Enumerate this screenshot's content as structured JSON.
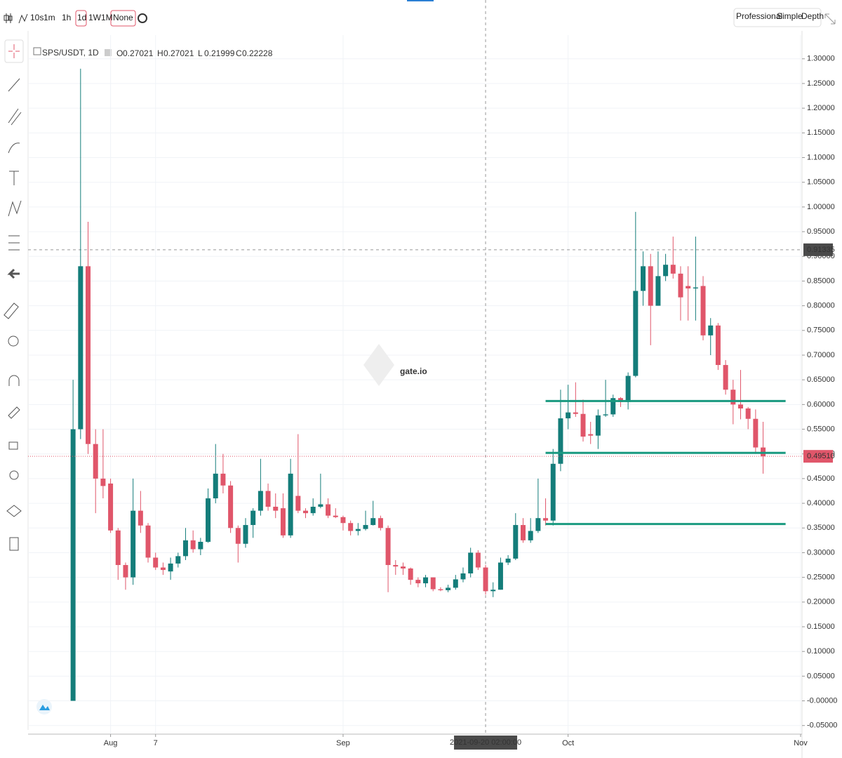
{
  "toolbar": {
    "intervals": [
      "10s",
      "1m",
      "1h",
      "1d",
      "1W",
      "1M"
    ],
    "active_interval": 3,
    "indicator": "None",
    "views": [
      "Professional",
      "Simple",
      "Depth"
    ]
  },
  "chart_data": {
    "type": "candlestick",
    "title": "SPS/USDT, 1D",
    "legend_ohlc": [
      {
        "key": "O",
        "value": 0.27021
      },
      {
        "key": "H",
        "value": 0.27021
      },
      {
        "key": "L",
        "value": 0.21999
      },
      {
        "key": "C",
        "value": 0.22228
      }
    ],
    "watermark": "gate.io",
    "up_color": "#147d7a",
    "down_color": "#e0566a",
    "x": [
      "2021-07-27",
      "2021-07-28",
      "2021-07-29",
      "2021-07-30",
      "2021-07-31",
      "2021-08-01",
      "2021-08-02",
      "2021-08-03",
      "2021-08-04",
      "2021-08-05",
      "2021-08-06",
      "2021-08-07",
      "2021-08-08",
      "2021-08-09",
      "2021-08-10",
      "2021-08-11",
      "2021-08-12",
      "2021-08-13",
      "2021-08-14",
      "2021-08-15",
      "2021-08-16",
      "2021-08-17",
      "2021-08-18",
      "2021-08-19",
      "2021-08-20",
      "2021-08-21",
      "2021-08-22",
      "2021-08-23",
      "2021-08-24",
      "2021-08-25",
      "2021-08-26",
      "2021-08-27",
      "2021-08-28",
      "2021-08-29",
      "2021-08-30",
      "2021-08-31",
      "2021-09-01",
      "2021-09-02",
      "2021-09-03",
      "2021-09-04",
      "2021-09-05",
      "2021-09-06",
      "2021-09-07",
      "2021-09-08",
      "2021-09-09",
      "2021-09-10",
      "2021-09-11",
      "2021-09-12",
      "2021-09-13",
      "2021-09-14",
      "2021-09-15",
      "2021-09-16",
      "2021-09-17",
      "2021-09-18",
      "2021-09-19",
      "2021-09-20",
      "2021-09-21",
      "2021-09-22",
      "2021-09-23",
      "2021-09-24",
      "2021-09-25",
      "2021-09-26",
      "2021-09-27",
      "2021-09-28",
      "2021-09-29",
      "2021-09-30",
      "2021-10-01",
      "2021-10-02",
      "2021-10-03",
      "2021-10-04",
      "2021-10-05",
      "2021-10-06",
      "2021-10-07",
      "2021-10-08",
      "2021-10-09",
      "2021-10-10",
      "2021-10-11",
      "2021-10-12",
      "2021-10-13",
      "2021-10-14",
      "2021-10-15",
      "2021-10-16",
      "2021-10-17",
      "2021-10-18",
      "2021-10-19",
      "2021-10-20",
      "2021-10-21",
      "2021-10-22",
      "2021-10-23",
      "2021-10-24",
      "2021-10-25",
      "2021-10-26",
      "2021-10-27"
    ],
    "open": [
      0.0,
      0.55,
      0.88,
      0.52,
      0.45,
      0.44,
      0.345,
      0.275,
      0.25,
      0.385,
      0.355,
      0.29,
      0.27,
      0.262,
      0.278,
      0.293,
      0.325,
      0.307,
      0.322,
      0.41,
      0.46,
      0.436,
      0.35,
      0.318,
      0.356,
      0.385,
      0.425,
      0.393,
      0.39,
      0.335,
      0.415,
      0.385,
      0.38,
      0.393,
      0.398,
      0.375,
      0.372,
      0.36,
      0.344,
      0.348,
      0.356,
      0.37,
      0.35,
      0.275,
      0.272,
      0.268,
      0.245,
      0.238,
      0.25,
      0.226,
      0.224,
      0.229,
      0.246,
      0.258,
      0.3,
      0.27,
      0.222,
      0.225,
      0.28,
      0.288,
      0.356,
      0.325,
      0.344,
      0.37,
      0.365,
      0.48,
      0.572,
      0.584,
      0.581,
      0.54,
      0.537,
      0.578,
      0.58,
      0.613,
      0.605,
      0.658,
      0.83,
      0.88,
      0.8,
      0.86,
      0.883,
      0.865,
      0.84,
      0.835,
      0.84,
      0.74,
      0.76,
      0.68,
      0.63,
      0.6,
      0.592,
      0.571,
      0.513
    ],
    "high": [
      0.65,
      1.28,
      0.97,
      0.55,
      0.55,
      0.45,
      0.35,
      0.28,
      0.45,
      0.425,
      0.36,
      0.3,
      0.28,
      0.29,
      0.3,
      0.35,
      0.345,
      0.33,
      0.43,
      0.52,
      0.5,
      0.445,
      0.355,
      0.37,
      0.39,
      0.49,
      0.44,
      0.42,
      0.42,
      0.49,
      0.54,
      0.39,
      0.41,
      0.46,
      0.41,
      0.39,
      0.375,
      0.365,
      0.36,
      0.385,
      0.405,
      0.375,
      0.355,
      0.285,
      0.28,
      0.27,
      0.25,
      0.255,
      0.25,
      0.23,
      0.235,
      0.255,
      0.27,
      0.31,
      0.305,
      0.275,
      0.24,
      0.29,
      0.295,
      0.38,
      0.37,
      0.37,
      0.45,
      0.41,
      0.51,
      0.63,
      0.64,
      0.645,
      0.61,
      0.565,
      0.59,
      0.65,
      0.62,
      0.615,
      0.665,
      0.99,
      0.91,
      0.905,
      0.91,
      0.905,
      0.94,
      0.88,
      0.88,
      0.94,
      0.86,
      0.775,
      0.765,
      0.69,
      0.65,
      0.67,
      0.595,
      0.59,
      0.565
    ],
    "low": [
      0.0,
      0.53,
      0.5,
      0.38,
      0.41,
      0.34,
      0.245,
      0.225,
      0.235,
      0.34,
      0.28,
      0.265,
      0.255,
      0.245,
      0.27,
      0.285,
      0.3,
      0.295,
      0.32,
      0.4,
      0.42,
      0.34,
      0.28,
      0.31,
      0.33,
      0.375,
      0.385,
      0.37,
      0.33,
      0.33,
      0.38,
      0.37,
      0.375,
      0.39,
      0.37,
      0.37,
      0.345,
      0.335,
      0.335,
      0.345,
      0.355,
      0.345,
      0.22,
      0.255,
      0.255,
      0.235,
      0.23,
      0.23,
      0.222,
      0.222,
      0.22,
      0.225,
      0.24,
      0.25,
      0.265,
      0.215,
      0.21,
      0.225,
      0.275,
      0.285,
      0.32,
      0.32,
      0.34,
      0.355,
      0.355,
      0.465,
      0.55,
      0.575,
      0.525,
      0.52,
      0.51,
      0.575,
      0.575,
      0.595,
      0.59,
      0.655,
      0.8,
      0.72,
      0.8,
      0.85,
      0.855,
      0.77,
      0.77,
      0.77,
      0.73,
      0.7,
      0.67,
      0.62,
      0.56,
      0.57,
      0.55,
      0.5,
      0.46
    ],
    "close": [
      0.55,
      0.88,
      0.52,
      0.45,
      0.435,
      0.345,
      0.275,
      0.25,
      0.385,
      0.355,
      0.29,
      0.27,
      0.265,
      0.278,
      0.293,
      0.325,
      0.307,
      0.322,
      0.41,
      0.46,
      0.436,
      0.35,
      0.318,
      0.356,
      0.385,
      0.425,
      0.393,
      0.385,
      0.335,
      0.46,
      0.385,
      0.38,
      0.393,
      0.398,
      0.375,
      0.372,
      0.36,
      0.344,
      0.348,
      0.356,
      0.37,
      0.35,
      0.275,
      0.272,
      0.268,
      0.245,
      0.238,
      0.25,
      0.226,
      0.224,
      0.229,
      0.246,
      0.258,
      0.3,
      0.27,
      0.222,
      0.225,
      0.28,
      0.288,
      0.356,
      0.325,
      0.344,
      0.37,
      0.365,
      0.48,
      0.572,
      0.584,
      0.581,
      0.535,
      0.537,
      0.578,
      0.58,
      0.613,
      0.605,
      0.658,
      0.83,
      0.88,
      0.8,
      0.86,
      0.883,
      0.865,
      0.817,
      0.835,
      0.837,
      0.74,
      0.76,
      0.68,
      0.63,
      0.6,
      0.592,
      0.571,
      0.513,
      0.495
    ],
    "xlim": [
      "2021-07-21",
      "2021-11-01"
    ],
    "xticks": [
      {
        "value": "2021-08-01",
        "label": "Aug"
      },
      {
        "value": "2021-08-07",
        "label": "7"
      },
      {
        "value": "2021-09-01",
        "label": "Sep"
      },
      {
        "value": "2021-10-01",
        "label": "Oct"
      },
      {
        "value": "2021-11-01",
        "label": "Nov"
      }
    ],
    "ylim": [
      -0.066,
      1.348
    ],
    "yticks": [
      {
        "value": 1.3,
        "label": "1.30000"
      },
      {
        "value": 1.25,
        "label": "1.25000"
      },
      {
        "value": 1.2,
        "label": "1.20000"
      },
      {
        "value": 1.15,
        "label": "1.15000"
      },
      {
        "value": 1.1,
        "label": "1.10000"
      },
      {
        "value": 1.05,
        "label": "1.05000"
      },
      {
        "value": 1.0,
        "label": "1.00000"
      },
      {
        "value": 0.95,
        "label": "0.95000"
      },
      {
        "value": 0.9,
        "label": "0.90000"
      },
      {
        "value": 0.85,
        "label": "0.85000"
      },
      {
        "value": 0.8,
        "label": "0.80000"
      },
      {
        "value": 0.75,
        "label": "0.75000"
      },
      {
        "value": 0.7,
        "label": "0.70000"
      },
      {
        "value": 0.65,
        "label": "0.65000"
      },
      {
        "value": 0.6,
        "label": "0.60000"
      },
      {
        "value": 0.55,
        "label": "0.55000"
      },
      {
        "value": 0.5,
        "label": "0.50000"
      },
      {
        "value": 0.45,
        "label": "0.45000"
      },
      {
        "value": 0.4,
        "label": "0.40000"
      },
      {
        "value": 0.35,
        "label": "0.35000"
      },
      {
        "value": 0.3,
        "label": "0.30000"
      },
      {
        "value": 0.25,
        "label": "0.25000"
      },
      {
        "value": 0.2,
        "label": "0.20000"
      },
      {
        "value": 0.15,
        "label": "0.15000"
      },
      {
        "value": 0.1,
        "label": "0.10000"
      },
      {
        "value": 0.05,
        "label": "0.05000"
      },
      {
        "value": 0,
        "label": "-0.00000"
      },
      {
        "value": -0.05,
        "label": "-0.05000"
      }
    ],
    "grid": true,
    "drawn_lines": [
      {
        "value": 0.607,
        "from": "2021-09-28",
        "to": "2021-10-30",
        "color": "#1a9a80"
      },
      {
        "value": 0.502,
        "from": "2021-09-28",
        "to": "2021-10-30",
        "color": "#1a9a80"
      },
      {
        "value": 0.358,
        "from": "2021-09-28",
        "to": "2021-10-30",
        "color": "#1a9a80"
      }
    ],
    "last_price": {
      "value": 0.4951,
      "label": "0.49510",
      "color": "#e0566a"
    },
    "crosshair": {
      "x": "2021-09-20",
      "x_label": "2021-09-20 02:00:00",
      "y": 0.91335,
      "y_label": "0.91335"
    }
  }
}
